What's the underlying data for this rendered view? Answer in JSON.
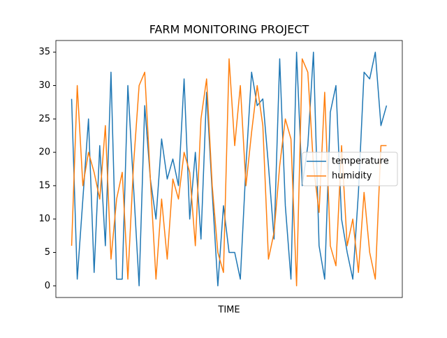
{
  "chart_data": {
    "type": "line",
    "title": "FARM MONITORING PROJECT",
    "x_label": "TIME",
    "categories": [
      null,
      null,
      null,
      null,
      null,
      null,
      null,
      null,
      null,
      null,
      null,
      null,
      null,
      null,
      null,
      null,
      null,
      null,
      null,
      null,
      null,
      null,
      null,
      null,
      null,
      null,
      null,
      null,
      null,
      null,
      null,
      null,
      null,
      null,
      null,
      null,
      null,
      null,
      null,
      null,
      null,
      null,
      null,
      null,
      null,
      null,
      null,
      null,
      null,
      null,
      null,
      null,
      null,
      null,
      null,
      null,
      null
    ],
    "series": [
      {
        "name": "temperature",
        "color": "#1f77b4",
        "values": [
          28,
          1,
          13,
          25,
          2,
          21,
          6,
          32,
          1,
          1,
          30,
          15,
          0,
          27,
          16,
          10,
          22,
          16,
          19,
          15,
          31,
          10,
          20,
          7,
          29,
          14,
          0,
          12,
          5,
          5,
          1,
          18,
          32,
          27,
          28,
          18,
          7,
          34,
          12,
          1,
          35,
          15,
          21,
          35,
          6,
          1,
          26,
          30,
          10,
          5,
          1,
          14,
          32,
          31,
          35,
          24,
          27
        ]
      },
      {
        "name": "humidity",
        "color": "#ff7f0e",
        "values": [
          6,
          30,
          15,
          20,
          17,
          13,
          24,
          4,
          13,
          17,
          1,
          18,
          30,
          32,
          16,
          1,
          13,
          4,
          16,
          13,
          20,
          17,
          6,
          25,
          31,
          15,
          5,
          2,
          34,
          21,
          30,
          15,
          23,
          30,
          24,
          4,
          8,
          18,
          25,
          22,
          0,
          34,
          32,
          18,
          11,
          29,
          6,
          3,
          21,
          6,
          10,
          2,
          14,
          5,
          1,
          21,
          21
        ]
      }
    ],
    "ylim": [
      -1.75,
      36.75
    ],
    "yticks": [
      0,
      5,
      10,
      15,
      20,
      25,
      30,
      35
    ],
    "legend": "center right"
  }
}
